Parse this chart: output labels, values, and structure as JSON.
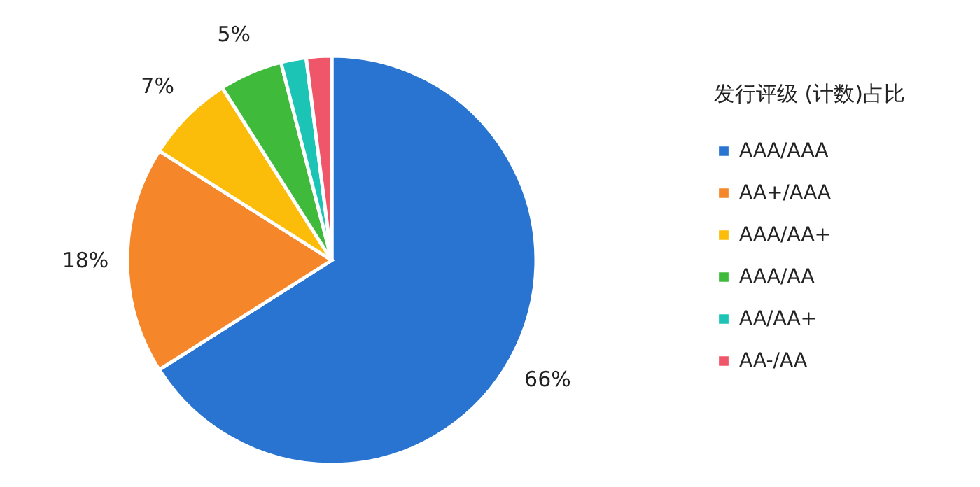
{
  "chart_data": {
    "type": "pie",
    "legend_title": "发行评级 (计数)占比",
    "categories": [
      "AAA/AAA",
      "AA+/AAA",
      "AAA/AA+",
      "AAA/AA",
      "AA/AA+",
      "AA-/AA"
    ],
    "values": [
      66,
      18,
      7,
      5,
      2,
      2
    ],
    "value_labels": [
      "66%",
      "18%",
      "7%",
      "5%",
      null,
      null
    ],
    "colors": [
      "#2874d0",
      "#f5862a",
      "#fbbd0a",
      "#3fba3b",
      "#1cc4b5",
      "#f0566a"
    ],
    "legend": "right"
  }
}
